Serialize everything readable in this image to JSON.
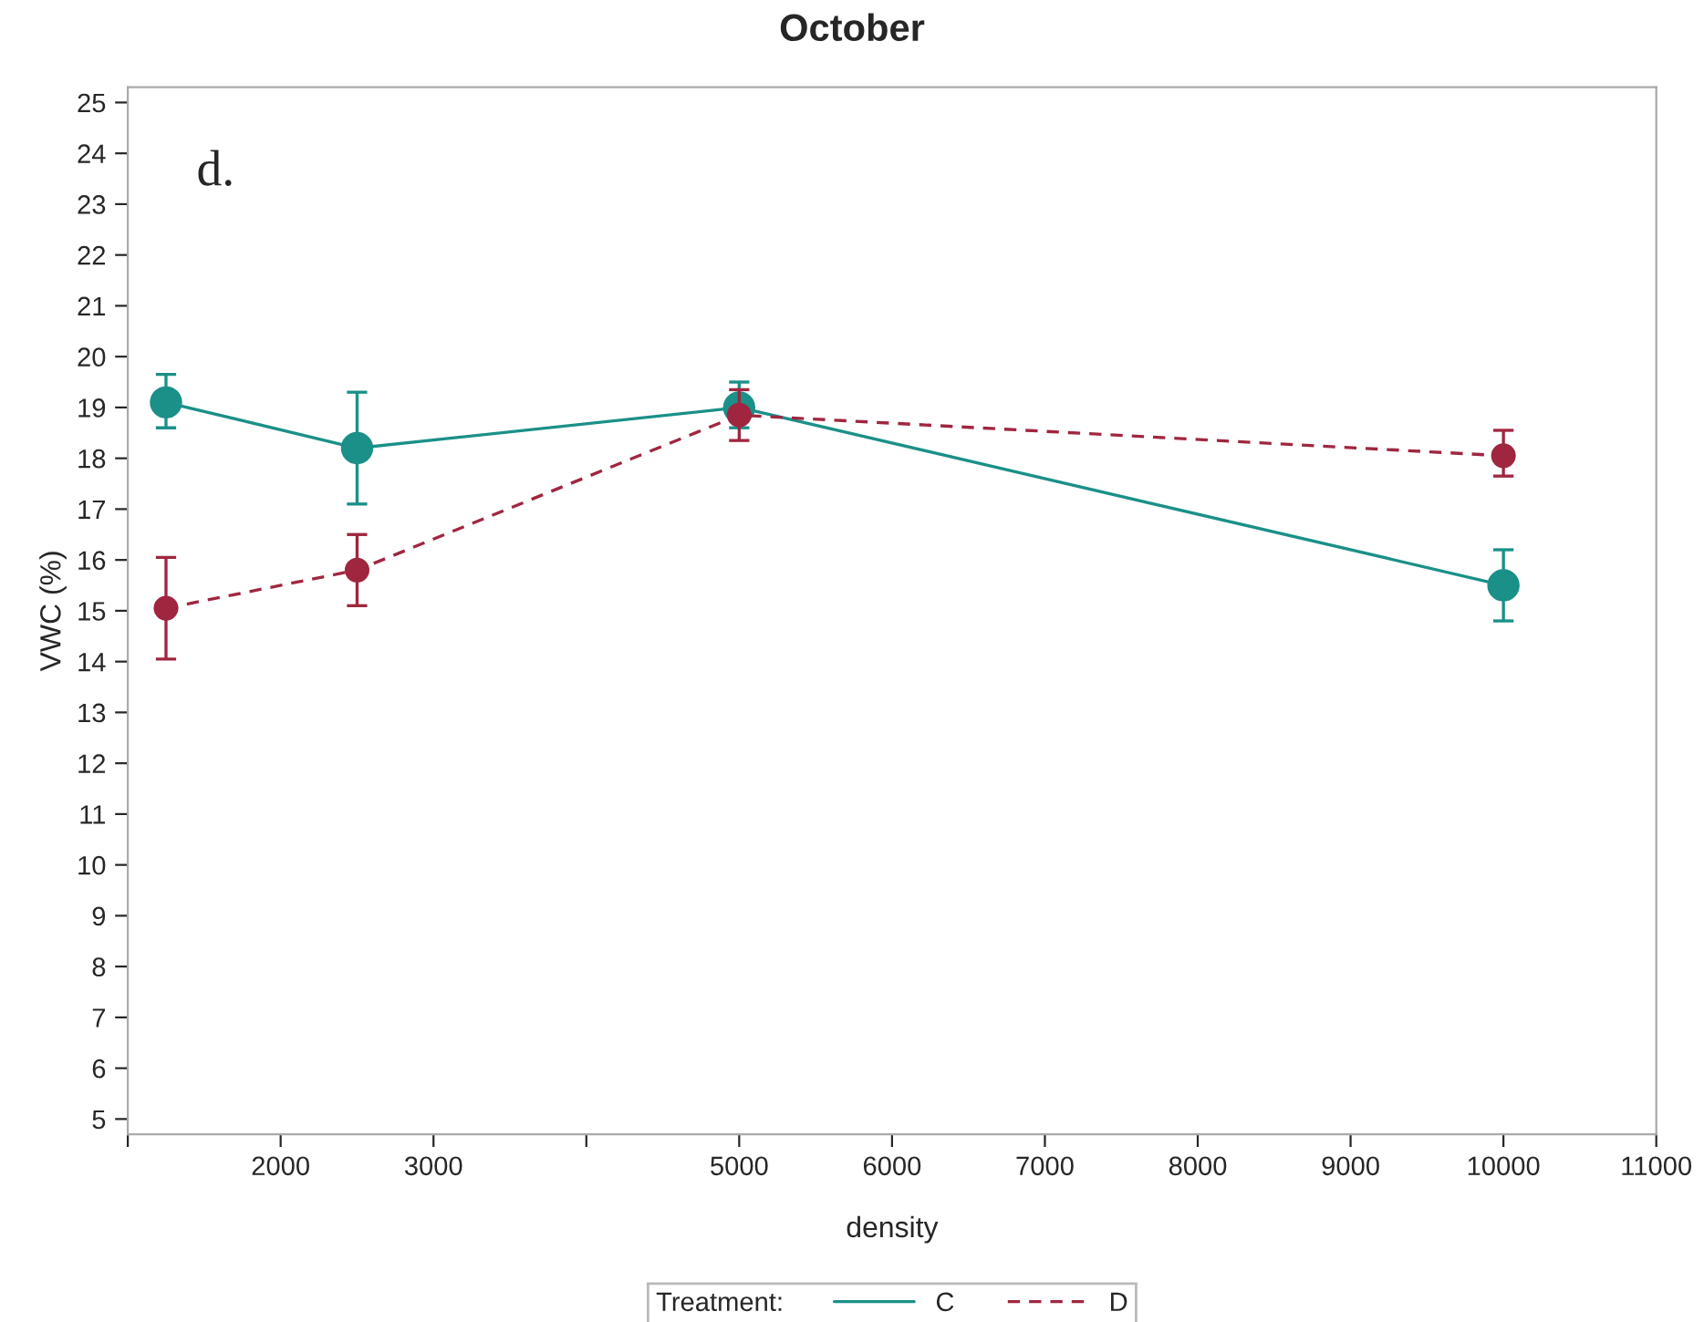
{
  "chart_data": {
    "type": "line",
    "title": "October",
    "xlabel": "density",
    "ylabel": "VWC (%)",
    "legend_title": "Treatment:",
    "annotations": [
      "d."
    ],
    "xlim": [
      1000,
      11000
    ],
    "xticks": [
      {
        "value": 1000,
        "label": null
      },
      2000,
      3000,
      {
        "value": 4000,
        "label": null
      },
      5000,
      6000,
      7000,
      8000,
      9000,
      10000,
      11000
    ],
    "ylim": [
      4.7,
      25.3
    ],
    "yticks": [
      5,
      6,
      7,
      8,
      9,
      10,
      11,
      12,
      13,
      14,
      15,
      16,
      17,
      18,
      19,
      20,
      21,
      22,
      23,
      24,
      25
    ],
    "x": [
      1250,
      2500,
      5000,
      10000
    ],
    "series": [
      {
        "name": "C",
        "color": "#1a9088",
        "line_style": "solid",
        "values": [
          19.1,
          18.2,
          19.0,
          15.5
        ],
        "errors": [
          [
            18.6,
            19.65
          ],
          [
            17.1,
            19.3
          ],
          [
            18.6,
            19.5
          ],
          [
            14.8,
            16.2
          ]
        ]
      },
      {
        "name": "D",
        "color": "#a0263f",
        "line_style": "dashed",
        "values": [
          15.05,
          15.8,
          18.85,
          18.05
        ],
        "errors": [
          [
            14.05,
            16.05
          ],
          [
            15.1,
            16.5
          ],
          [
            18.35,
            19.35
          ],
          [
            17.65,
            18.55
          ]
        ]
      }
    ],
    "marker": "circle",
    "grid": false,
    "legend": "bottom"
  }
}
